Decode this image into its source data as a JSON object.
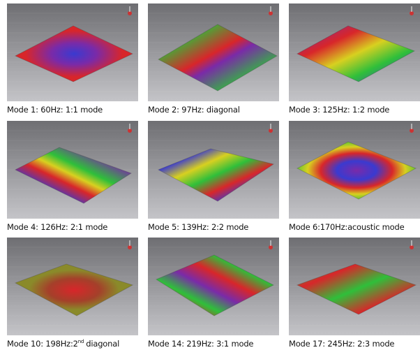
{
  "panels": [
    {
      "caption": "Mode 1: 60Hz: 1:1 mode"
    },
    {
      "caption": "Mode 2: 97Hz: diagonal"
    },
    {
      "caption": "Mode 3: 125Hz: 1:2 mode"
    },
    {
      "caption": "Mode 4: 126Hz: 2:1 mode"
    },
    {
      "caption": "Mode 5: 139Hz: 2:2 mode"
    },
    {
      "caption": "Mode 6:170Hz:acoustic mode"
    },
    {
      "caption": "Mode 10: 198Hz:2",
      "caption_sup": "nd",
      "caption_end": "diagonal"
    },
    {
      "caption": "Mode 14: 219Hz: 3:1 mode"
    },
    {
      "caption": "Mode 17: 245Hz: 2:3 mode"
    }
  ]
}
